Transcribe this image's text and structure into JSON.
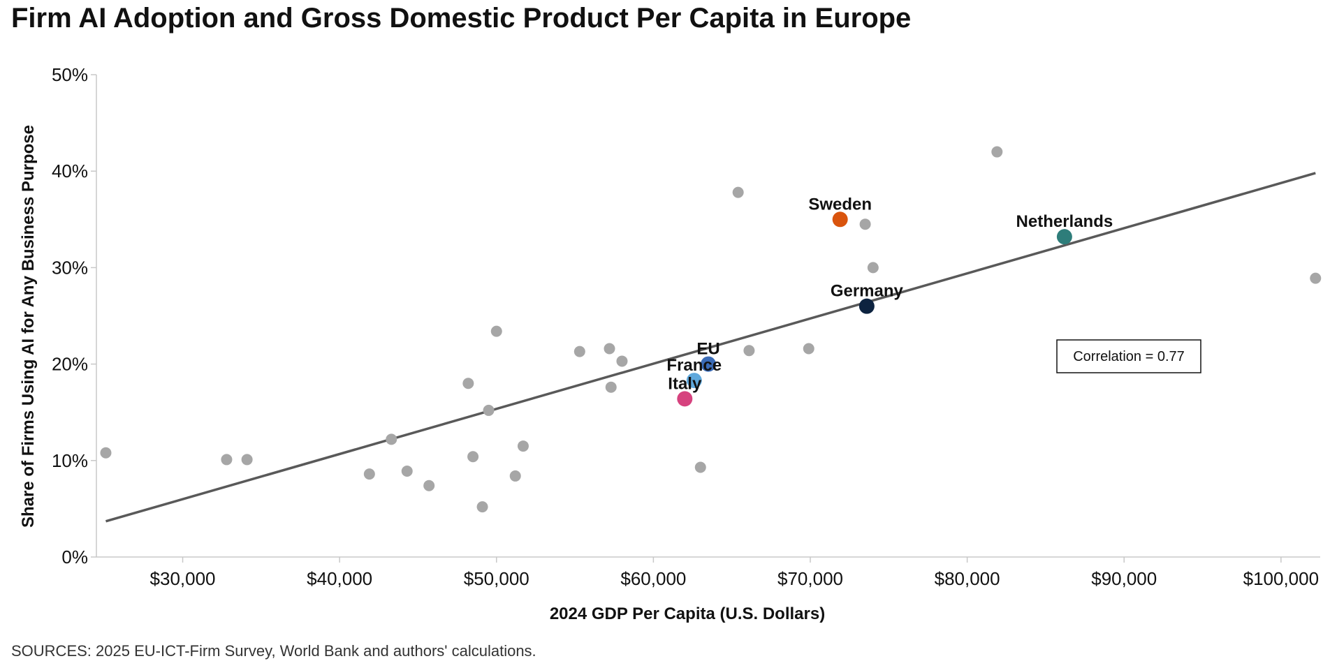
{
  "page": {
    "title": "Firm AI Adoption and Gross Domestic Product Per Capita in Europe",
    "source": "SOURCES: 2025 EU-ICT-Firm Survey, World Bank and authors' calculations."
  },
  "chart_data": {
    "type": "scatter",
    "title": "Firm AI Adoption and Gross Domestic Product Per Capita in Europe",
    "xlabel": "2024 GDP Per Capita (U.S. Dollars)",
    "ylabel": "Share of Firms Using AI for Any Business Purpose",
    "xlim": [
      24500,
      102500
    ],
    "ylim": [
      0,
      50
    ],
    "x_ticks": [
      30000,
      40000,
      50000,
      60000,
      70000,
      80000,
      90000,
      100000
    ],
    "x_tick_labels": [
      "$30,000",
      "$40,000",
      "$50,000",
      "$60,000",
      "$70,000",
      "$80,000",
      "$90,000",
      "$100,000"
    ],
    "y_ticks": [
      0,
      10,
      20,
      30,
      40,
      50
    ],
    "y_tick_labels": [
      "0%",
      "10%",
      "20%",
      "30%",
      "40%",
      "50%"
    ],
    "grid": false,
    "points": [
      {
        "x": 25100,
        "y": 10.8
      },
      {
        "x": 32800,
        "y": 10.1
      },
      {
        "x": 34100,
        "y": 10.1
      },
      {
        "x": 41900,
        "y": 8.6
      },
      {
        "x": 43300,
        "y": 12.2
      },
      {
        "x": 44300,
        "y": 8.9
      },
      {
        "x": 45700,
        "y": 7.4
      },
      {
        "x": 48200,
        "y": 18.0
      },
      {
        "x": 48500,
        "y": 10.4
      },
      {
        "x": 49100,
        "y": 5.2
      },
      {
        "x": 49500,
        "y": 15.2
      },
      {
        "x": 50000,
        "y": 23.4
      },
      {
        "x": 51200,
        "y": 8.4
      },
      {
        "x": 51700,
        "y": 11.5
      },
      {
        "x": 55300,
        "y": 21.3
      },
      {
        "x": 57200,
        "y": 21.6
      },
      {
        "x": 57300,
        "y": 17.6
      },
      {
        "x": 58000,
        "y": 20.3
      },
      {
        "x": 63000,
        "y": 9.3
      },
      {
        "x": 65400,
        "y": 37.8
      },
      {
        "x": 66100,
        "y": 21.4
      },
      {
        "x": 69900,
        "y": 21.6
      },
      {
        "x": 73500,
        "y": 34.5
      },
      {
        "x": 74000,
        "y": 30.0
      },
      {
        "x": 81900,
        "y": 42.0
      },
      {
        "x": 102200,
        "y": 28.9
      }
    ],
    "highlighted": [
      {
        "name": "Sweden",
        "x": 71900,
        "y": 35.0,
        "color": "#d9540d"
      },
      {
        "name": "Netherlands",
        "x": 86200,
        "y": 33.2,
        "color": "#2e7d7a"
      },
      {
        "name": "Germany",
        "x": 73600,
        "y": 26.0,
        "color": "#0d2340"
      },
      {
        "name": "EU",
        "x": 63500,
        "y": 20.0,
        "color": "#3b6cb7"
      },
      {
        "name": "France",
        "x": 62600,
        "y": 18.3,
        "color": "#5fa8dc"
      },
      {
        "name": "Italy",
        "x": 62000,
        "y": 16.4,
        "color": "#d6427e"
      }
    ],
    "trendline": {
      "x": [
        25100,
        102200
      ],
      "y": [
        3.7,
        39.8
      ]
    },
    "annotation": "Correlation = 0.77",
    "colors": {
      "points": "#a6a6a6",
      "trendline": "#595959",
      "axis": "#c8c8c8"
    }
  }
}
